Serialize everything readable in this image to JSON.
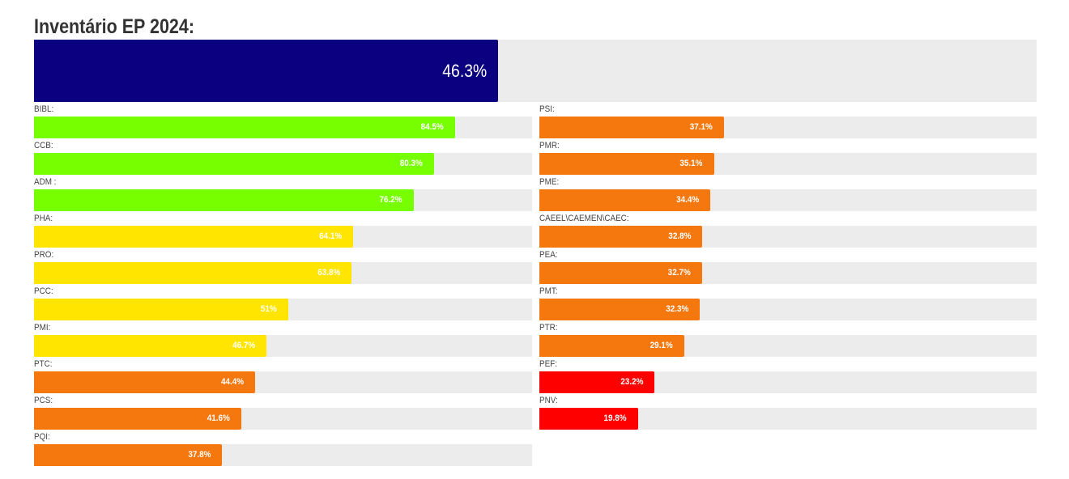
{
  "title": "Inventário EP 2024:",
  "chart_data": {
    "type": "bar",
    "title": "Inventário EP 2024:",
    "total": {
      "value": 46.3,
      "label": "46.3%",
      "color": "#0b0080"
    },
    "ylim": [
      0,
      100
    ],
    "colors": {
      "green": "#77ff00",
      "yellow": "#ffe500",
      "orange": "#f5780f",
      "red": "#ff0000",
      "track": "#ececec",
      "total": "#0b0080"
    },
    "columns": [
      [
        {
          "name": "BIBL:",
          "value": 84.5,
          "label": "84.5%",
          "color": "#77ff00"
        },
        {
          "name": "CCB:",
          "value": 80.3,
          "label": "80.3%",
          "color": "#77ff00"
        },
        {
          "name": "ADM :",
          "value": 76.2,
          "label": "76.2%",
          "color": "#77ff00"
        },
        {
          "name": "PHA:",
          "value": 64.1,
          "label": "64.1%",
          "color": "#ffe500"
        },
        {
          "name": "PRO:",
          "value": 63.8,
          "label": "63.8%",
          "color": "#ffe500"
        },
        {
          "name": "PCC:",
          "value": 51,
          "label": "51%",
          "color": "#ffe500"
        },
        {
          "name": "PMI:",
          "value": 46.7,
          "label": "46.7%",
          "color": "#ffe500"
        },
        {
          "name": "PTC:",
          "value": 44.4,
          "label": "44.4%",
          "color": "#f5780f"
        },
        {
          "name": "PCS:",
          "value": 41.6,
          "label": "41.6%",
          "color": "#f5780f"
        },
        {
          "name": "PQI:",
          "value": 37.8,
          "label": "37.8%",
          "color": "#f5780f"
        }
      ],
      [
        {
          "name": "PSI:",
          "value": 37.1,
          "label": "37.1%",
          "color": "#f5780f"
        },
        {
          "name": "PMR:",
          "value": 35.1,
          "label": "35.1%",
          "color": "#f5780f"
        },
        {
          "name": "PME:",
          "value": 34.4,
          "label": "34.4%",
          "color": "#f5780f"
        },
        {
          "name": "CAEEL\\CAEMEN\\CAEC:",
          "value": 32.8,
          "label": "32.8%",
          "color": "#f5780f"
        },
        {
          "name": "PEA:",
          "value": 32.7,
          "label": "32.7%",
          "color": "#f5780f"
        },
        {
          "name": "PMT:",
          "value": 32.3,
          "label": "32.3%",
          "color": "#f5780f"
        },
        {
          "name": "PTR:",
          "value": 29.1,
          "label": "29.1%",
          "color": "#f5780f"
        },
        {
          "name": "PEF:",
          "value": 23.2,
          "label": "23.2%",
          "color": "#ff0000"
        },
        {
          "name": "PNV:",
          "value": 19.8,
          "label": "19.8%",
          "color": "#ff0000"
        }
      ]
    ]
  }
}
